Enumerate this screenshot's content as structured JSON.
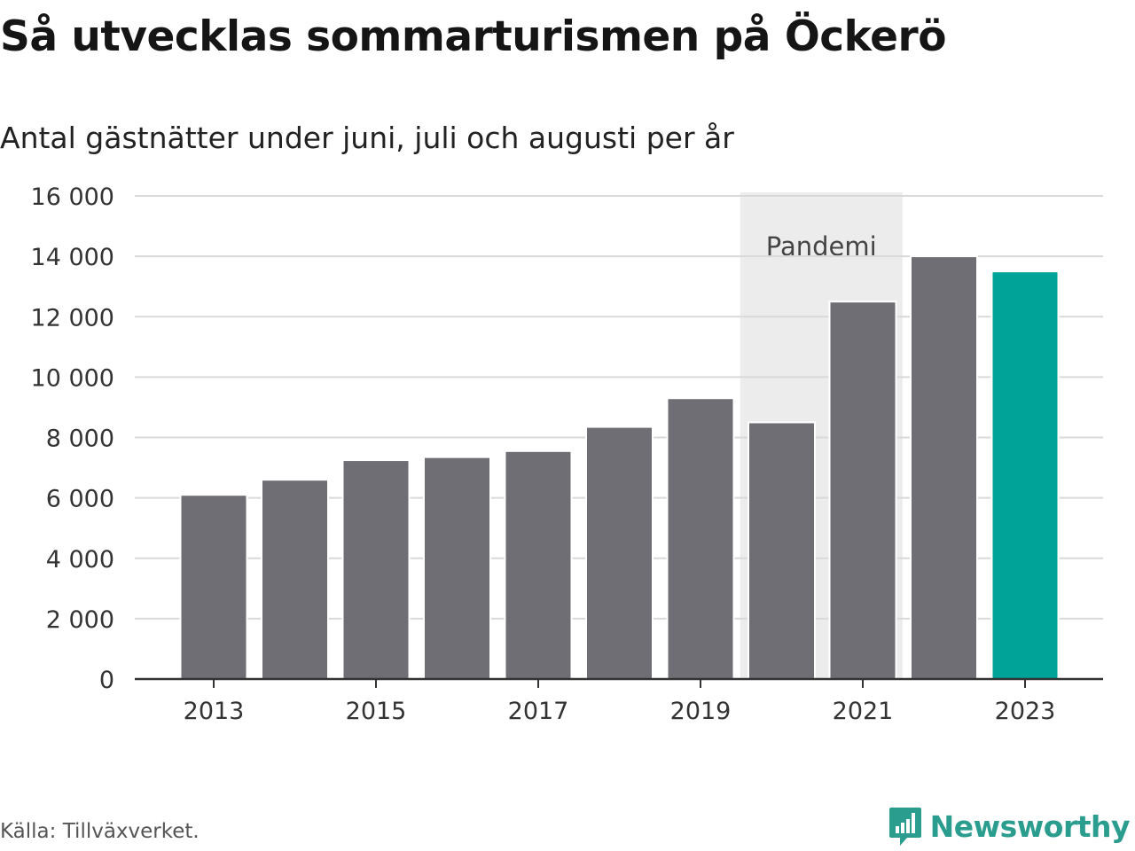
{
  "title": "Så utvecklas sommarturismen på Öckerö",
  "subtitle": "Antal gästnätter under juni, juli och augusti per år",
  "source": "Källa: Tillväxverket.",
  "brand": {
    "name": "Newsworthy",
    "icon": "bar-chart-icon",
    "color": "#2a9d8f"
  },
  "chart_data": {
    "type": "bar",
    "categories": [
      "2013",
      "2014",
      "2015",
      "2016",
      "2017",
      "2018",
      "2019",
      "2020",
      "2021",
      "2022",
      "2023"
    ],
    "values": [
      6100,
      6600,
      7250,
      7350,
      7550,
      8350,
      9300,
      8500,
      12500,
      14000,
      13500
    ],
    "x_tick_labels": [
      "2013",
      "2015",
      "2017",
      "2019",
      "2021",
      "2023"
    ],
    "y_ticks": [
      0,
      2000,
      4000,
      6000,
      8000,
      10000,
      12000,
      14000,
      16000
    ],
    "y_tick_labels": [
      "0",
      "2 000",
      "4 000",
      "6 000",
      "8 000",
      "10 000",
      "12 000",
      "14 000",
      "16 000"
    ],
    "ylim": [
      0,
      16000
    ],
    "bar_color": "#6f6e75",
    "highlight_color": "#00a397",
    "highlight_index": 10,
    "shaded_region": {
      "label": "Pandemi",
      "from": "2020",
      "to": "2021",
      "color": "#ececec"
    },
    "grid": true,
    "xlabel": "",
    "ylabel": ""
  }
}
